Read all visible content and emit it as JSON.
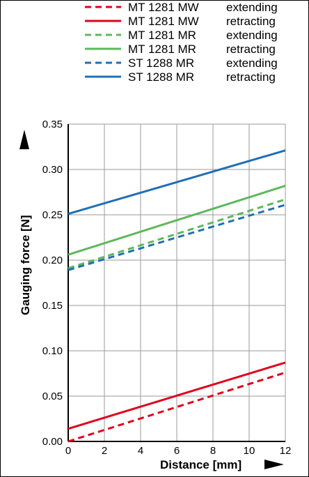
{
  "chart_data": {
    "type": "line",
    "xlabel": "Distance [mm]",
    "ylabel": "Gauging force [N]",
    "xlim": [
      0,
      12
    ],
    "ylim": [
      0,
      0.35
    ],
    "x_ticks": [
      "0",
      "2",
      "4",
      "6",
      "8",
      "10",
      "12"
    ],
    "y_ticks": [
      "0.00",
      "0.05",
      "0.10",
      "0.15",
      "0.20",
      "0.25",
      "0.30",
      "0.35"
    ],
    "grid": true,
    "legend_position": "top",
    "series": [
      {
        "name": "MT 1281 MW",
        "mode": "extending",
        "color": "#e3001b",
        "dash": true,
        "x": [
          0,
          12
        ],
        "y": [
          0.0,
          0.076
        ]
      },
      {
        "name": "MT 1281 MW",
        "mode": "retracting",
        "color": "#e3001b",
        "dash": false,
        "x": [
          0,
          12
        ],
        "y": [
          0.014,
          0.087
        ]
      },
      {
        "name": "MT 1281 MR",
        "mode": "extending",
        "color": "#5cb85c",
        "dash": true,
        "x": [
          0,
          12
        ],
        "y": [
          0.191,
          0.267
        ]
      },
      {
        "name": "MT 1281 MR",
        "mode": "retracting",
        "color": "#5cb85c",
        "dash": false,
        "x": [
          0,
          12
        ],
        "y": [
          0.206,
          0.282
        ]
      },
      {
        "name": "ST 1288 MR",
        "mode": "extending",
        "color": "#1f6fb5",
        "dash": true,
        "x": [
          0,
          12
        ],
        "y": [
          0.189,
          0.261
        ]
      },
      {
        "name": "ST 1288 MR",
        "mode": "retracting",
        "color": "#1f6fb5",
        "dash": false,
        "x": [
          0,
          12
        ],
        "y": [
          0.251,
          0.321
        ]
      }
    ]
  }
}
